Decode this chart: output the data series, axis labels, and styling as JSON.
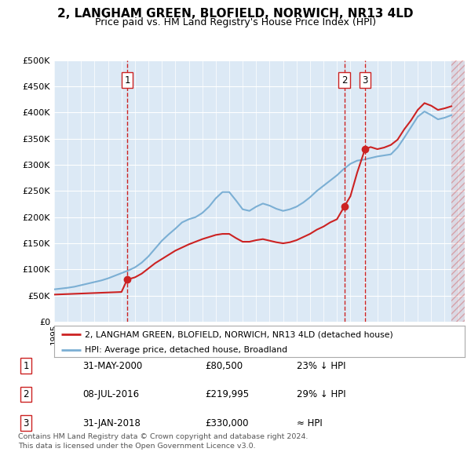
{
  "title": "2, LANGHAM GREEN, BLOFIELD, NORWICH, NR13 4LD",
  "subtitle": "Price paid vs. HM Land Registry's House Price Index (HPI)",
  "ylim": [
    0,
    500000
  ],
  "yticks": [
    0,
    50000,
    100000,
    150000,
    200000,
    250000,
    300000,
    350000,
    400000,
    450000,
    500000
  ],
  "ytick_labels": [
    "£0",
    "£50K",
    "£100K",
    "£150K",
    "£200K",
    "£250K",
    "£300K",
    "£350K",
    "£400K",
    "£450K",
    "£500K"
  ],
  "xlim_start": 1995.0,
  "xlim_end": 2025.5,
  "hpi_color": "#7bafd4",
  "property_color": "#cc2222",
  "marker_color": "#cc2222",
  "vline_color": "#cc2222",
  "plot_bg_color": "#dce9f5",
  "hpi_data": [
    [
      1995.0,
      62000
    ],
    [
      1995.5,
      63500
    ],
    [
      1996.0,
      65000
    ],
    [
      1996.5,
      67000
    ],
    [
      1997.0,
      70000
    ],
    [
      1997.5,
      73000
    ],
    [
      1998.0,
      76000
    ],
    [
      1998.5,
      79000
    ],
    [
      1999.0,
      83000
    ],
    [
      1999.5,
      88000
    ],
    [
      2000.0,
      93000
    ],
    [
      2000.5,
      98000
    ],
    [
      2001.0,
      104000
    ],
    [
      2001.5,
      113000
    ],
    [
      2002.0,
      125000
    ],
    [
      2002.5,
      140000
    ],
    [
      2003.0,
      155000
    ],
    [
      2003.5,
      167000
    ],
    [
      2004.0,
      178000
    ],
    [
      2004.5,
      190000
    ],
    [
      2005.0,
      196000
    ],
    [
      2005.5,
      200000
    ],
    [
      2006.0,
      208000
    ],
    [
      2006.5,
      220000
    ],
    [
      2007.0,
      236000
    ],
    [
      2007.5,
      248000
    ],
    [
      2008.0,
      248000
    ],
    [
      2008.5,
      232000
    ],
    [
      2009.0,
      215000
    ],
    [
      2009.5,
      212000
    ],
    [
      2010.0,
      220000
    ],
    [
      2010.5,
      226000
    ],
    [
      2011.0,
      222000
    ],
    [
      2011.5,
      216000
    ],
    [
      2012.0,
      212000
    ],
    [
      2012.5,
      215000
    ],
    [
      2013.0,
      220000
    ],
    [
      2013.5,
      228000
    ],
    [
      2014.0,
      238000
    ],
    [
      2014.5,
      250000
    ],
    [
      2015.0,
      260000
    ],
    [
      2015.5,
      270000
    ],
    [
      2016.0,
      280000
    ],
    [
      2016.5,
      292000
    ],
    [
      2017.0,
      302000
    ],
    [
      2017.5,
      308000
    ],
    [
      2018.0,
      310000
    ],
    [
      2018.5,
      313000
    ],
    [
      2019.0,
      316000
    ],
    [
      2019.5,
      318000
    ],
    [
      2020.0,
      320000
    ],
    [
      2020.5,
      333000
    ],
    [
      2021.0,
      352000
    ],
    [
      2021.5,
      372000
    ],
    [
      2022.0,
      392000
    ],
    [
      2022.5,
      402000
    ],
    [
      2023.0,
      395000
    ],
    [
      2023.5,
      387000
    ],
    [
      2024.0,
      390000
    ],
    [
      2024.5,
      395000
    ]
  ],
  "property_data": [
    [
      1995.0,
      52000
    ],
    [
      1995.5,
      52500
    ],
    [
      1996.0,
      53000
    ],
    [
      1996.5,
      53500
    ],
    [
      1997.0,
      54000
    ],
    [
      1997.5,
      54500
    ],
    [
      1998.0,
      55000
    ],
    [
      1998.5,
      55500
    ],
    [
      1999.0,
      56000
    ],
    [
      1999.5,
      56500
    ],
    [
      2000.0,
      57000
    ],
    [
      2000.417,
      80500
    ],
    [
      2001.0,
      85000
    ],
    [
      2001.5,
      92000
    ],
    [
      2002.0,
      102000
    ],
    [
      2002.5,
      112000
    ],
    [
      2003.0,
      120000
    ],
    [
      2003.5,
      128000
    ],
    [
      2004.0,
      136000
    ],
    [
      2004.5,
      142000
    ],
    [
      2005.0,
      148000
    ],
    [
      2005.5,
      153000
    ],
    [
      2006.0,
      158000
    ],
    [
      2006.5,
      162000
    ],
    [
      2007.0,
      166000
    ],
    [
      2007.5,
      168000
    ],
    [
      2008.0,
      168000
    ],
    [
      2008.5,
      160000
    ],
    [
      2009.0,
      153000
    ],
    [
      2009.5,
      153000
    ],
    [
      2010.0,
      156000
    ],
    [
      2010.5,
      158000
    ],
    [
      2011.0,
      155000
    ],
    [
      2011.5,
      152000
    ],
    [
      2012.0,
      150000
    ],
    [
      2012.5,
      152000
    ],
    [
      2013.0,
      156000
    ],
    [
      2013.5,
      162000
    ],
    [
      2014.0,
      168000
    ],
    [
      2014.5,
      176000
    ],
    [
      2015.0,
      182000
    ],
    [
      2015.5,
      190000
    ],
    [
      2016.0,
      196000
    ],
    [
      2016.542,
      219995
    ],
    [
      2017.0,
      240000
    ],
    [
      2017.5,
      285000
    ],
    [
      2018.083,
      330000
    ],
    [
      2018.5,
      334000
    ],
    [
      2019.0,
      330000
    ],
    [
      2019.5,
      333000
    ],
    [
      2020.0,
      338000
    ],
    [
      2020.5,
      348000
    ],
    [
      2021.0,
      368000
    ],
    [
      2021.5,
      385000
    ],
    [
      2022.0,
      405000
    ],
    [
      2022.5,
      418000
    ],
    [
      2023.0,
      413000
    ],
    [
      2023.5,
      405000
    ],
    [
      2024.0,
      408000
    ],
    [
      2024.5,
      412000
    ]
  ],
  "transactions": [
    {
      "num": 1,
      "year": 2000.417,
      "price": 80500,
      "date": "31-MAY-2000",
      "label": "£80,500",
      "pct": "23% ↓ HPI"
    },
    {
      "num": 2,
      "year": 2016.542,
      "price": 219995,
      "date": "08-JUL-2016",
      "label": "£219,995",
      "pct": "29% ↓ HPI"
    },
    {
      "num": 3,
      "year": 2018.083,
      "price": 330000,
      "date": "31-JAN-2018",
      "label": "£330,000",
      "pct": "≈ HPI"
    }
  ],
  "legend_line1": "2, LANGHAM GREEN, BLOFIELD, NORWICH, NR13 4LD (detached house)",
  "legend_line2": "HPI: Average price, detached house, Broadland",
  "copyright": "Contains HM Land Registry data © Crown copyright and database right 2024.\nThis data is licensed under the Open Government Licence v3.0."
}
